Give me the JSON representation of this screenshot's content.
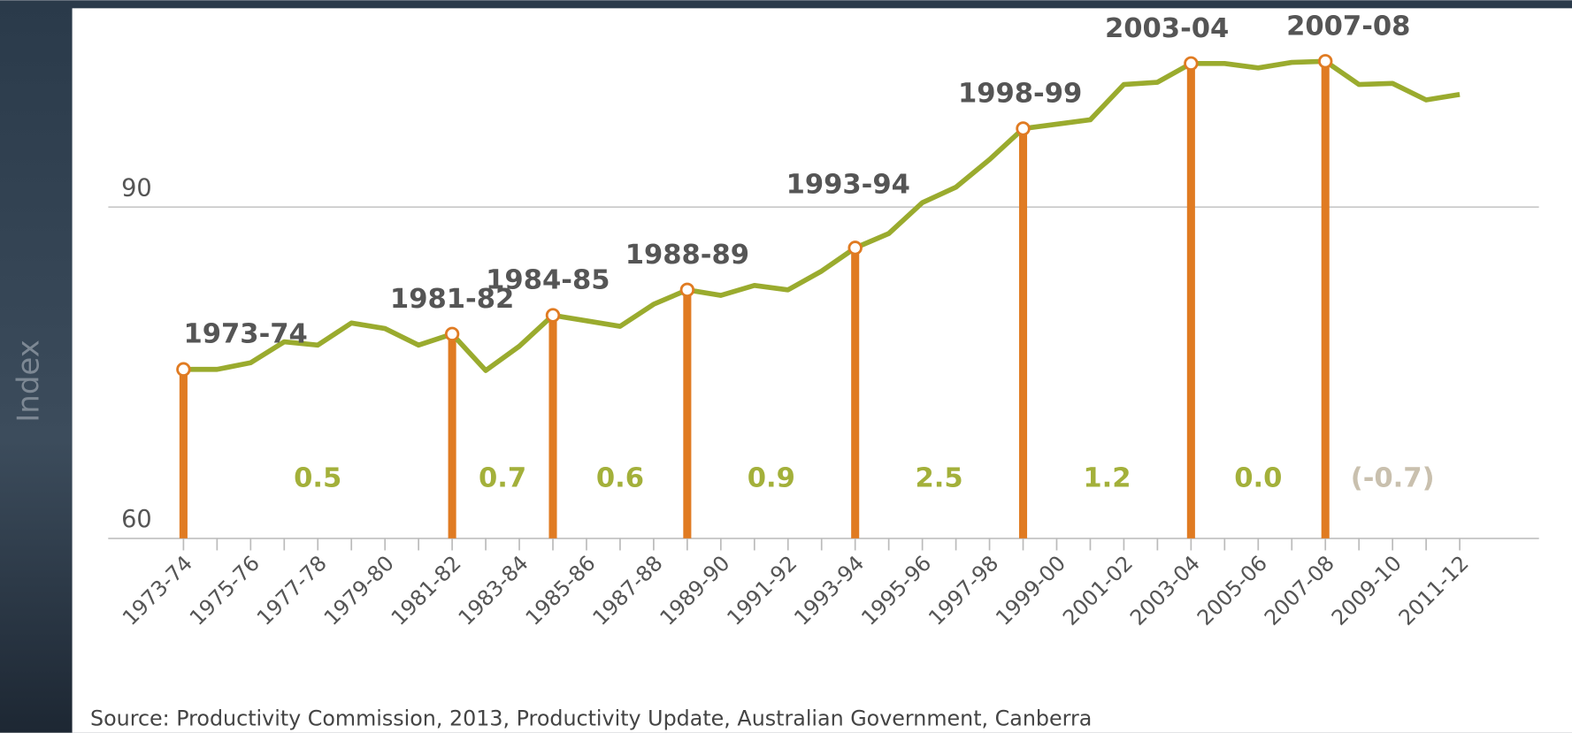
{
  "chart_data": {
    "type": "line",
    "y_axis_label": "Index",
    "categories": [
      "1973-74",
      null,
      "1975-76",
      null,
      "1977-78",
      null,
      "1979-80",
      null,
      "1981-82",
      null,
      "1983-84",
      null,
      "1985-86",
      null,
      "1987-88",
      null,
      "1989-90",
      null,
      "1991-92",
      null,
      "1993-94",
      null,
      "1995-96",
      null,
      "1997-98",
      null,
      "1999-00",
      null,
      "2001-02",
      null,
      "2003-04",
      null,
      "2005-06",
      null,
      "2007-08",
      null,
      "2009-10",
      null,
      "2011-12"
    ],
    "series": [
      {
        "name": "Index",
        "color": "#9aab2e",
        "values": [
          75.3,
          75.3,
          75.9,
          77.8,
          77.5,
          79.5,
          79.0,
          77.5,
          78.5,
          75.2,
          77.4,
          80.2,
          79.7,
          79.2,
          81.2,
          82.5,
          82.0,
          82.9,
          82.5,
          84.2,
          86.3,
          87.6,
          90.4,
          91.8,
          94.3,
          97.1,
          97.5,
          97.9,
          101.1,
          101.3,
          103.0,
          103.0,
          102.6,
          103.1,
          103.2,
          101.1,
          101.2,
          99.7,
          100.2
        ]
      }
    ],
    "ylim": [
      60,
      108
    ],
    "yticks": [
      60,
      90
    ],
    "grid": true,
    "peaks": {
      "color": "#e07b22",
      "labels": [
        "1973-74",
        "1981-82",
        "1984-85",
        "1988-89",
        "1993-94",
        "1998-99",
        "2003-04",
        "2007-08"
      ],
      "x": [
        0,
        8,
        11,
        15,
        20,
        25,
        30,
        34
      ]
    },
    "cycle_growth": {
      "color": "#a3b03a",
      "negative_color": "#c9c0ae",
      "values": [
        0.5,
        0.7,
        0.6,
        0.9,
        2.5,
        1.2,
        0.0,
        -0.7
      ],
      "value_labels": [
        "0.5",
        "0.7",
        "0.6",
        "0.9",
        "2.5",
        "1.2",
        "0.0",
        "(-0.7)"
      ]
    },
    "source": "Source: Productivity Commission, 2013, Productivity Update, Australian Government, Canberra"
  }
}
